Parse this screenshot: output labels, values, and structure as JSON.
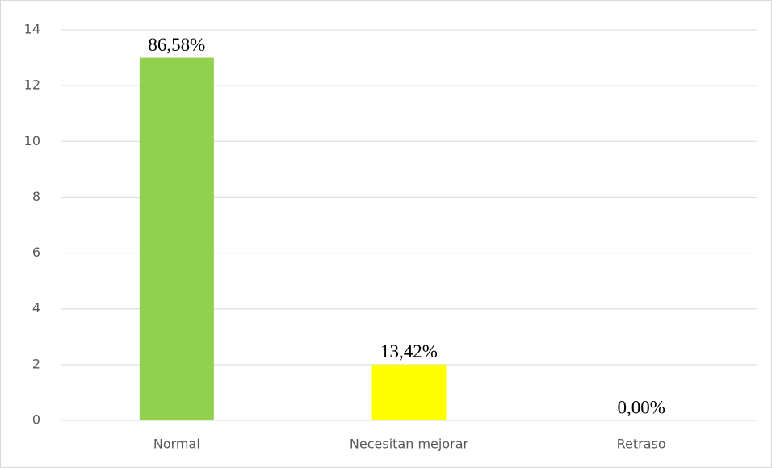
{
  "chart_data": {
    "type": "bar",
    "categories": [
      "Normal",
      "Necesitan mejorar",
      "Retraso"
    ],
    "values": [
      13,
      2,
      0
    ],
    "colors": [
      "#92d050",
      "#ffff00",
      "#a5a5a5"
    ],
    "percentages": [
      86.58,
      13.42,
      0
    ],
    "percentage_labels": [
      "86,58%",
      "13,42%",
      "0,00%"
    ],
    "ylim": [
      0,
      14
    ],
    "yticks": [
      0,
      2,
      4,
      6,
      8,
      10,
      12,
      14
    ],
    "grid": true
  }
}
